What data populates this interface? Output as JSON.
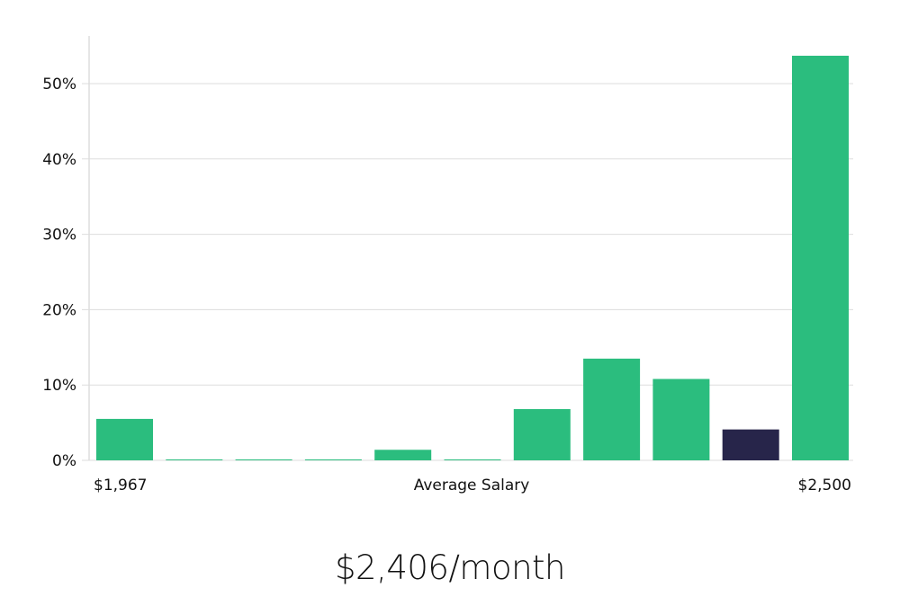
{
  "chart_data": {
    "type": "bar",
    "title": "",
    "xlabel": "Average Salary",
    "ylabel": "",
    "x_range_labels": {
      "min": "$1,967",
      "max": "$2,500"
    },
    "categories": [
      "bin1",
      "bin2",
      "bin3",
      "bin4",
      "bin5",
      "bin6",
      "bin7",
      "bin8",
      "bin9",
      "bin10",
      "bin11"
    ],
    "values": [
      5.5,
      0.1,
      0.1,
      0.1,
      1.4,
      0.1,
      6.8,
      13.5,
      10.8,
      4.1,
      53.7
    ],
    "highlight_index": 9,
    "ylim": [
      0,
      56
    ],
    "yticks": [
      0,
      10,
      20,
      30,
      40,
      50
    ],
    "ytick_labels": [
      "0%",
      "10%",
      "20%",
      "30%",
      "40%",
      "50%"
    ],
    "grid": true,
    "colors": {
      "bar": "#2bbd7e",
      "highlight": "#27254a",
      "grid": "#dddddd",
      "axis": "#cccccc"
    }
  },
  "axis": {
    "x_min_label": "$1,967",
    "x_center_label": "Average Salary",
    "x_max_label": "$2,500"
  },
  "summary": {
    "value": "$2,406/month"
  }
}
